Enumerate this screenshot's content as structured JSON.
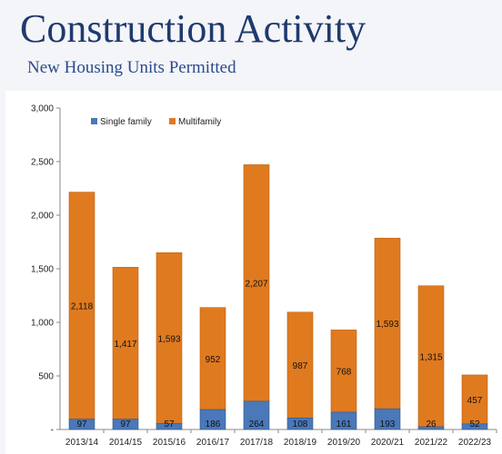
{
  "slide": {
    "title": "Construction Activity",
    "subtitle": "New Housing Units Permitted"
  },
  "chart_data": {
    "type": "bar",
    "stacked": true,
    "title": "",
    "xlabel": "",
    "ylabel": "",
    "ylim": [
      0,
      3000
    ],
    "yticks": [
      0,
      500,
      1000,
      1500,
      2000,
      2500,
      3000
    ],
    "ytick_labels": [
      "-",
      "500",
      "1,000",
      "1,500",
      "2,000",
      "2,500",
      "3,000"
    ],
    "grid": false,
    "legend_position": "top-left",
    "categories": [
      "2013/14",
      "2014/15",
      "2015/16",
      "2016/17",
      "2017/18",
      "2018/19",
      "2019/20",
      "2020/21",
      "2021/22",
      "2022/23"
    ],
    "series": [
      {
        "name": "Single family",
        "color": "#4a78b8",
        "values": [
          97,
          97,
          57,
          186,
          264,
          108,
          161,
          193,
          26,
          52
        ],
        "labels": [
          "97",
          "97",
          "57",
          "186",
          "264",
          "108",
          "161",
          "193",
          "26",
          "52"
        ]
      },
      {
        "name": "Multifamily",
        "color": "#e07a1f",
        "values": [
          2118,
          1417,
          1593,
          952,
          2207,
          987,
          768,
          1593,
          1315,
          457
        ],
        "labels": [
          "2,118",
          "1,417",
          "1,593",
          "952",
          "2,207",
          "987",
          "768",
          "1,593",
          "1,315",
          "457"
        ]
      }
    ]
  }
}
